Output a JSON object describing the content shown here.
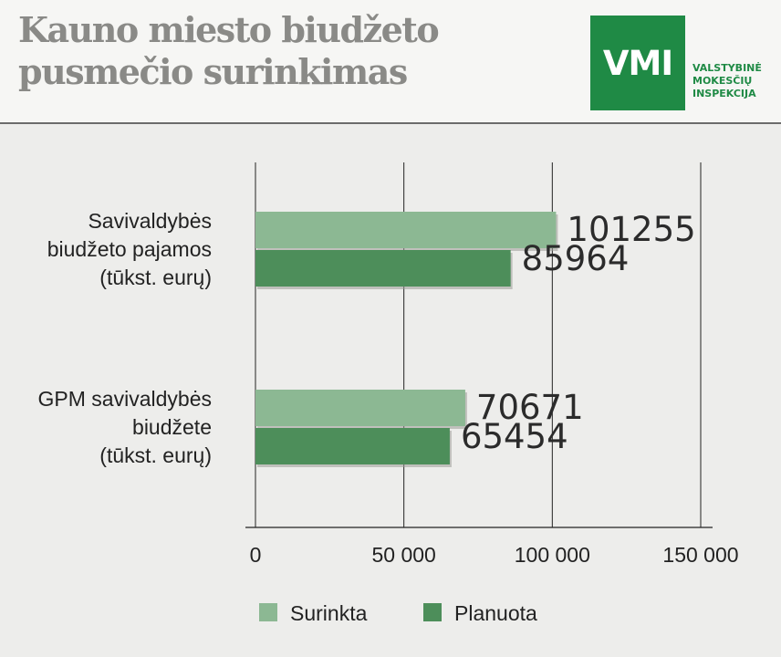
{
  "header": {
    "title_line1": "Kauno miesto biudžeto",
    "title_line2": "pusmečio surinkimas",
    "logo": {
      "mark": "VMI",
      "sub_line1": "VALSTYBINĖ",
      "sub_line2": "MOKESČIŲ",
      "sub_line3": "INSPEKCIJA",
      "color": "#1f8a45"
    }
  },
  "chart_data": {
    "type": "bar",
    "orientation": "horizontal",
    "categories": [
      [
        "Savivaldybės",
        "biudžeto pajamos",
        "(tūkst. eurų)"
      ],
      [
        "GPM savivaldybės",
        "biudžete",
        "(tūkst. eurų)"
      ]
    ],
    "series": [
      {
        "name": "Surinkta",
        "color": "#8cb893",
        "values": [
          101255,
          70671
        ]
      },
      {
        "name": "Planuota",
        "color": "#4d8e5a",
        "values": [
          85964,
          65454
        ]
      }
    ],
    "xlim": [
      0,
      150000
    ],
    "ticks": [
      0,
      50000,
      100000,
      150000
    ],
    "tick_labels": [
      "0",
      "50 000",
      "100 000",
      "150 000"
    ],
    "grid": true,
    "legend_position": "bottom"
  }
}
